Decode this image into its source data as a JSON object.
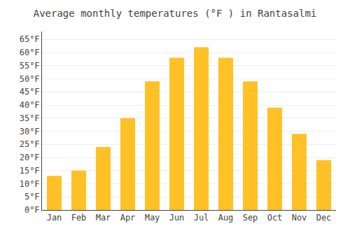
{
  "chart_data": {
    "type": "bar",
    "title": "Average monthly temperatures (°F ) in Rantasalmi",
    "categories": [
      "Jan",
      "Feb",
      "Mar",
      "Apr",
      "May",
      "Jun",
      "Jul",
      "Aug",
      "Sep",
      "Oct",
      "Nov",
      "Dec"
    ],
    "values": [
      13,
      15,
      24,
      35,
      49,
      58,
      62,
      58,
      49,
      39,
      29,
      19
    ],
    "color": "#FFC125",
    "ylim": [
      0,
      68
    ],
    "yticks": [
      {
        "value": 0,
        "label": "0°F"
      },
      {
        "value": 5,
        "label": "5°F"
      },
      {
        "value": 10,
        "label": "10°F"
      },
      {
        "value": 15,
        "label": "15°F"
      },
      {
        "value": 20,
        "label": "20°F"
      },
      {
        "value": 25,
        "label": "25°F"
      },
      {
        "value": 30,
        "label": "30°F"
      },
      {
        "value": 35,
        "label": "35°F"
      },
      {
        "value": 40,
        "label": "40°F"
      },
      {
        "value": 45,
        "label": "45°F"
      },
      {
        "value": 50,
        "label": "50°F"
      },
      {
        "value": 55,
        "label": "55°F"
      },
      {
        "value": 60,
        "label": "60°F"
      },
      {
        "value": 65,
        "label": "65°F"
      }
    ],
    "grid": true
  }
}
